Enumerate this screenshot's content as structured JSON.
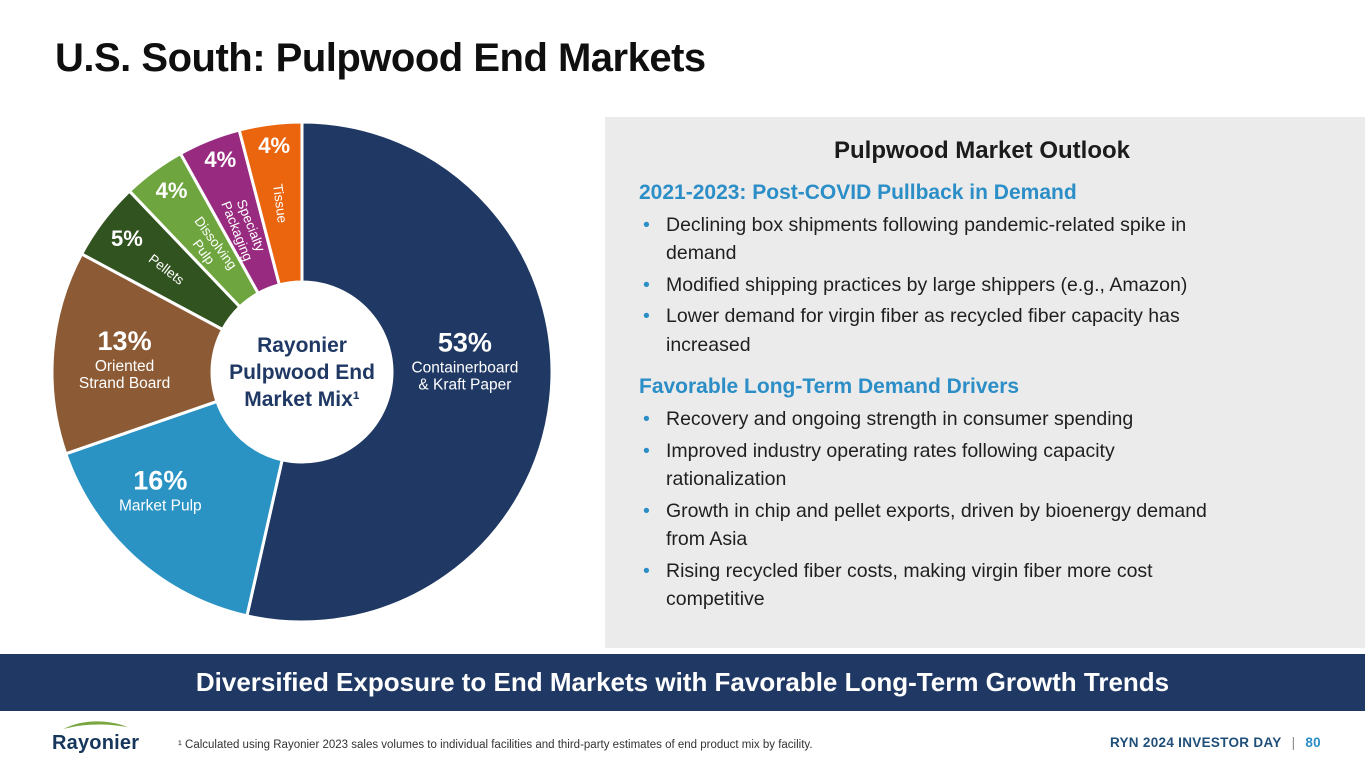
{
  "title": "U.S. South: Pulpwood End Markets",
  "chart_data": {
    "type": "pie",
    "title": "Rayonier Pulpwood End Market Mix¹",
    "center_label_lines": [
      "Rayonier",
      "Pulpwood End",
      "Market Mix¹"
    ],
    "units": "%",
    "segments": [
      {
        "label": "Containerboard & Kraft Paper",
        "value": 53,
        "percent": "53%",
        "color": "#1F3864",
        "label_lines": [
          "Containerboard",
          "& Kraft Paper"
        ],
        "label_style": "horizontal"
      },
      {
        "label": "Market Pulp",
        "value": 16,
        "percent": "16%",
        "color": "#2A93C4",
        "label_lines": [
          "Market Pulp"
        ],
        "label_style": "horizontal"
      },
      {
        "label": "Oriented Strand Board",
        "value": 13,
        "percent": "13%",
        "color": "#8C5B35",
        "label_lines": [
          "Oriented",
          "Strand Board"
        ],
        "label_style": "horizontal"
      },
      {
        "label": "Pellets",
        "value": 5,
        "percent": "5%",
        "color": "#31531F",
        "label_lines": [
          "Pellets"
        ],
        "label_style": "radial"
      },
      {
        "label": "Dissolving Pulp",
        "value": 4,
        "percent": "4%",
        "color": "#6FA53F",
        "label_lines": [
          "Dissolving",
          "Pulp"
        ],
        "label_style": "radial"
      },
      {
        "label": "Specialty Packaging",
        "value": 4,
        "percent": "4%",
        "color": "#982B80",
        "label_lines": [
          "Specialty",
          "Packaging"
        ],
        "label_style": "radial"
      },
      {
        "label": "Tissue",
        "value": 4,
        "percent": "4%",
        "color": "#EA650D",
        "label_lines": [
          "Tissue"
        ],
        "label_style": "radial"
      }
    ]
  },
  "outlook": {
    "title": "Pulpwood Market Outlook",
    "sections": [
      {
        "heading": "2021-2023: Post-COVID Pullback in Demand",
        "bullets": [
          "Declining box shipments following pandemic-related spike in demand",
          "Modified shipping practices by large shippers (e.g., Amazon)",
          "Lower demand for virgin fiber as recycled fiber capacity has increased"
        ]
      },
      {
        "heading": "Favorable Long-Term Demand Drivers",
        "bullets": [
          "Recovery and ongoing strength in consumer spending",
          "Improved industry operating rates following capacity rationalization",
          "Growth in chip and pellet exports, driven by bioenergy demand from Asia",
          "Rising recycled fiber costs, making virgin fiber more cost competitive"
        ]
      }
    ]
  },
  "banner": {
    "text": "Diversified Exposure to End Markets with Favorable Long-Term Growth Trends"
  },
  "footer": {
    "logo_text": "Rayonier",
    "footnote": "¹ Calculated using Rayonier 2023 sales volumes to individual facilities and third-party estimates of end product mix by facility.",
    "event": "RYN 2024 INVESTOR DAY",
    "separator": "|",
    "page": "80"
  },
  "colors": {
    "navy": "#1F3864",
    "accent_blue": "#2B8EC7",
    "panel_gray": "#EBEBEB",
    "logo_green": "#79A63F"
  }
}
